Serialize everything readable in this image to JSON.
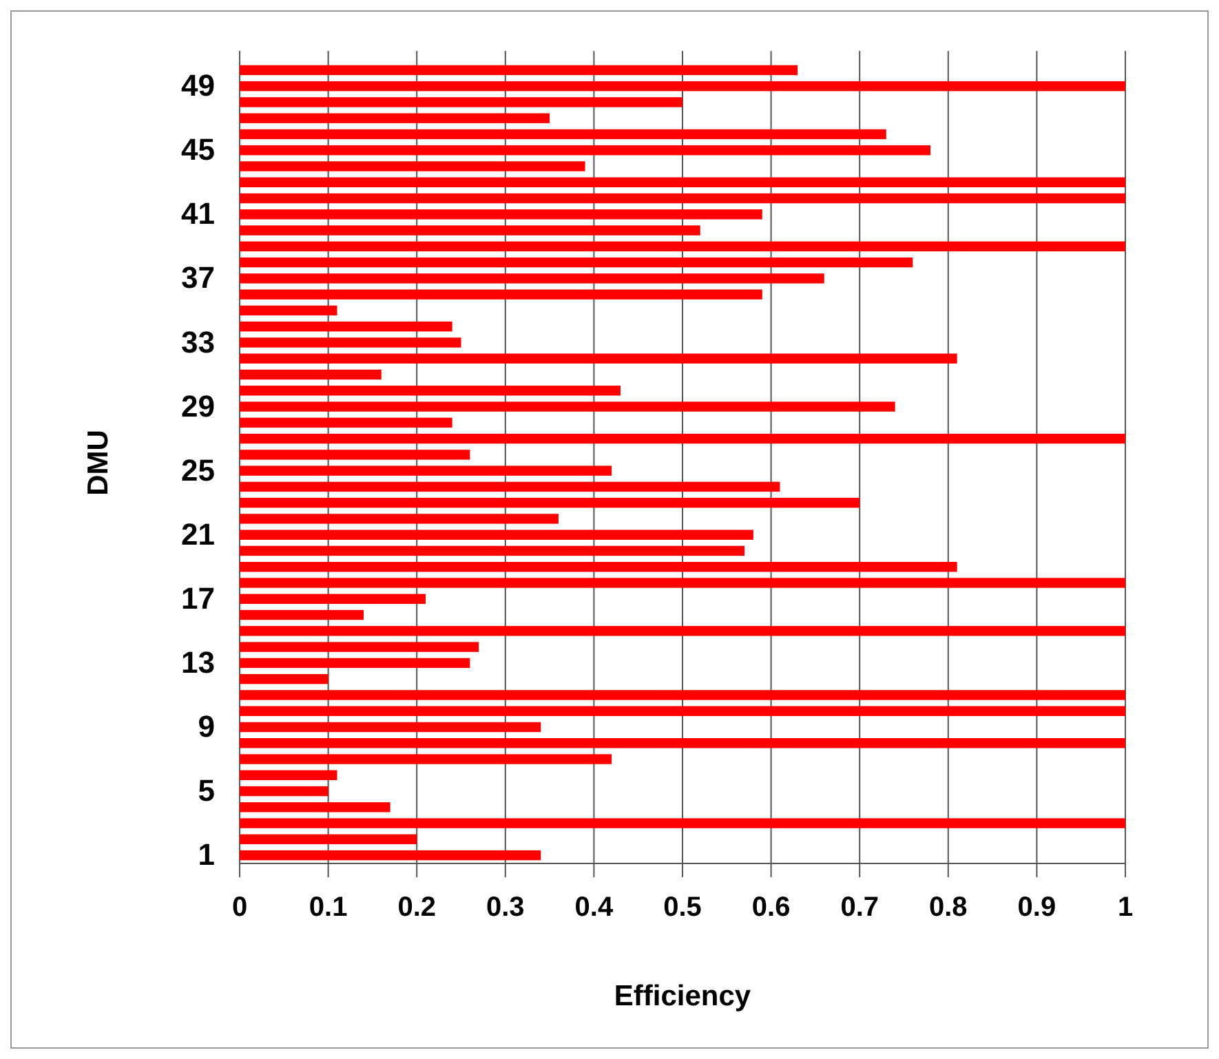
{
  "chart_data": {
    "type": "bar",
    "orientation": "horizontal",
    "xlabel": "Efficiency",
    "ylabel": "DMU",
    "categories": [
      null,
      "49",
      null,
      null,
      null,
      "45",
      null,
      null,
      null,
      "41",
      null,
      null,
      null,
      "37",
      null,
      null,
      null,
      "33",
      null,
      null,
      null,
      "29",
      null,
      null,
      null,
      "25",
      null,
      null,
      null,
      "21",
      null,
      null,
      null,
      "17",
      null,
      null,
      null,
      "13",
      null,
      null,
      null,
      "9",
      null,
      null,
      null,
      "5",
      null,
      null,
      null,
      "1"
    ],
    "values": [
      0.63,
      1,
      0.5,
      0.35,
      0.73,
      0.78,
      0.39,
      1,
      1,
      0.59,
      0.52,
      1,
      0.76,
      0.66,
      0.59,
      0.11,
      0.24,
      0.25,
      0.81,
      0.16,
      0.43,
      0.74,
      0.24,
      1,
      0.26,
      0.42,
      0.61,
      0.7,
      0.36,
      0.58,
      0.57,
      0.81,
      1,
      0.21,
      0.14,
      1,
      0.27,
      0.26,
      0.1,
      1,
      1,
      0.34,
      1,
      0.42,
      0.11,
      0.1,
      0.17,
      1,
      0.2,
      0.34
    ],
    "color": "#ff0000",
    "xlim": [
      0,
      1
    ],
    "xticks": [
      0,
      0.1,
      0.2,
      0.3,
      0.4,
      0.5,
      0.6,
      0.7,
      0.8,
      0.9,
      1
    ],
    "grid": "x"
  }
}
